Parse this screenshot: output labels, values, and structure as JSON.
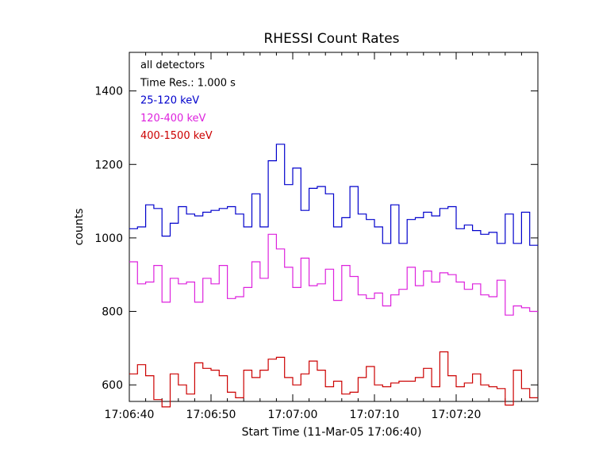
{
  "chart_data": {
    "type": "line",
    "step": true,
    "title": "RHESSI Count Rates",
    "xlabel": "Start Time (11-Mar-05 17:06:40)",
    "ylabel": "counts",
    "xlim": [
      0,
      50
    ],
    "ylim": [
      555,
      1505
    ],
    "x_tick_values": [
      0,
      10,
      20,
      30,
      40
    ],
    "x_tick_labels": [
      "17:06:40",
      "17:06:50",
      "17:07:00",
      "17:07:10",
      "17:07:20"
    ],
    "y_ticks": [
      600,
      800,
      1000,
      1200,
      1400
    ],
    "legend": {
      "placement": "top-left",
      "info": [
        "all detectors",
        "Time Res.: 1.000 s"
      ]
    },
    "series": [
      {
        "name": "25-120 keV",
        "color": "#0000cc",
        "values": [
          1025,
          1030,
          1090,
          1080,
          1005,
          1040,
          1085,
          1065,
          1060,
          1070,
          1075,
          1080,
          1085,
          1065,
          1030,
          1120,
          1030,
          1210,
          1255,
          1145,
          1190,
          1075,
          1135,
          1140,
          1120,
          1030,
          1055,
          1140,
          1065,
          1050,
          1030,
          985,
          1090,
          985,
          1050,
          1055,
          1070,
          1060,
          1080,
          1085,
          1025,
          1035,
          1020,
          1010,
          1015,
          985,
          1065,
          985,
          1070,
          980
        ]
      },
      {
        "name": "120-400 keV",
        "color": "#dd22dd",
        "values": [
          935,
          875,
          880,
          925,
          825,
          890,
          875,
          880,
          825,
          890,
          875,
          925,
          835,
          840,
          865,
          935,
          890,
          1010,
          970,
          920,
          865,
          945,
          870,
          875,
          915,
          830,
          925,
          895,
          845,
          835,
          850,
          815,
          845,
          860,
          920,
          870,
          910,
          880,
          905,
          900,
          880,
          860,
          875,
          845,
          840,
          885,
          790,
          815,
          810,
          800
        ]
      },
      {
        "name": "400-1500 keV",
        "color": "#cc0000",
        "values": [
          630,
          655,
          625,
          560,
          540,
          630,
          600,
          575,
          660,
          645,
          640,
          625,
          580,
          565,
          640,
          620,
          640,
          670,
          675,
          620,
          600,
          630,
          665,
          640,
          595,
          610,
          575,
          580,
          620,
          650,
          600,
          595,
          605,
          610,
          610,
          620,
          645,
          595,
          690,
          625,
          595,
          605,
          630,
          600,
          595,
          590,
          545,
          640,
          590,
          565
        ]
      }
    ]
  }
}
